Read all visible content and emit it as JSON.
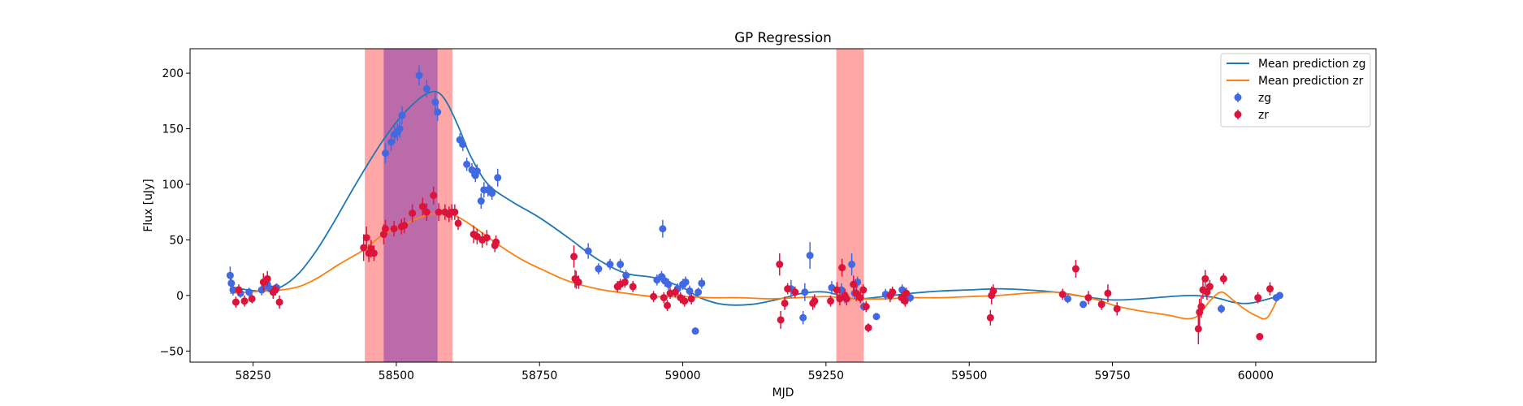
{
  "chart_data": {
    "type": "scatter",
    "title": "GP Regression",
    "xlabel": "MJD",
    "ylabel": "Flux [uJy]",
    "xlim": [
      58140,
      60210
    ],
    "ylim": [
      -60,
      222
    ],
    "xticks": [
      58250,
      58500,
      58750,
      59000,
      59250,
      59500,
      59750,
      60000
    ],
    "yticks": [
      -50,
      0,
      50,
      100,
      150,
      200
    ],
    "grid": false,
    "legend_position": "top-right",
    "legend": [
      "Mean prediction zg",
      "Mean prediction zr",
      "zg",
      "zr"
    ],
    "colors": {
      "zg_line": "#1f77b4",
      "zr_line": "#ff7f0e",
      "zg_points": "#4169e1",
      "zr_points": "#dc143c",
      "band_red": "#ff4d4d",
      "band_purple": "#8e44ad"
    },
    "shaded_regions": [
      {
        "x0": 58445,
        "x1": 58598,
        "color": "red"
      },
      {
        "x0": 58478,
        "x1": 58572,
        "color": "purple"
      },
      {
        "x0": 59268,
        "x1": 59316,
        "color": "red"
      }
    ],
    "series": [
      {
        "name": "Mean prediction zg",
        "kind": "line",
        "x": [
          58210,
          58240,
          58270,
          58300,
          58330,
          58360,
          58390,
          58420,
          58450,
          58480,
          58510,
          58540,
          58560,
          58575,
          58590,
          58610,
          58630,
          58660,
          58700,
          58750,
          58800,
          58850,
          58900,
          58950,
          59000,
          59030,
          59070,
          59120,
          59170,
          59210,
          59250,
          59300,
          59350,
          59400,
          59450,
          59500,
          59550,
          59600,
          59650,
          59700,
          59750,
          59800,
          59850,
          59890,
          59930,
          59960,
          59990,
          60030
        ],
        "y": [
          8,
          5,
          4,
          8,
          20,
          40,
          65,
          92,
          118,
          142,
          162,
          177,
          183,
          182,
          172,
          150,
          125,
          100,
          85,
          70,
          52,
          33,
          20,
          16,
          7,
          -2,
          -8,
          -8,
          -3,
          2,
          3,
          -3,
          -1,
          2,
          4,
          5,
          6,
          5,
          3,
          -1,
          -4,
          -3,
          -1,
          0,
          -2,
          -6,
          -7,
          -2
        ]
      },
      {
        "name": "Mean prediction zr",
        "kind": "line",
        "x": [
          58210,
          58240,
          58270,
          58300,
          58330,
          58360,
          58400,
          58440,
          58460,
          58480,
          58510,
          58540,
          58570,
          58590,
          58610,
          58640,
          58680,
          58720,
          58760,
          58800,
          58850,
          58900,
          58950,
          59000,
          59050,
          59100,
          59150,
          59200,
          59250,
          59300,
          59350,
          59400,
          59450,
          59500,
          59550,
          59600,
          59650,
          59700,
          59730,
          59760,
          59800,
          59850,
          59880,
          59900,
          59920,
          59940,
          59960,
          59980,
          60000,
          60020,
          60040
        ],
        "y": [
          2,
          3,
          4,
          5,
          8,
          15,
          28,
          40,
          48,
          56,
          63,
          70,
          74,
          74,
          70,
          60,
          45,
          32,
          22,
          13,
          6,
          2,
          -1,
          -1,
          -2,
          -2,
          -3,
          -2,
          -1,
          -3,
          -3,
          -2,
          -2,
          -1,
          0,
          2,
          3,
          -1,
          -5,
          -10,
          -14,
          -18,
          -21,
          -18,
          -5,
          3,
          -4,
          -12,
          -18,
          -20,
          -1
        ]
      },
      {
        "name": "zg",
        "kind": "errorbar",
        "x": [
          58210,
          58212,
          58215,
          58228,
          58243,
          58265,
          58270,
          58275,
          58280,
          58291,
          58481,
          58491,
          58497,
          58502,
          58506,
          58510,
          58540,
          58553,
          58568,
          58572,
          58611,
          58616,
          58623,
          58632,
          58638,
          58641,
          58648,
          58653,
          58660,
          58667,
          58677,
          58835,
          58853,
          58873,
          58891,
          58901,
          58955,
          58963,
          58965,
          58969,
          58975,
          58991,
          59000,
          59005,
          59012,
          59022,
          59027,
          59033,
          59189,
          59210,
          59213,
          59222,
          59260,
          59277,
          59283,
          59295,
          59300,
          59305,
          59316,
          59338,
          59354,
          59364,
          59383,
          59397,
          59672,
          59699,
          59940,
          60036,
          60042
        ],
        "y": [
          18,
          11,
          5,
          2,
          3,
          5,
          8,
          10,
          6,
          7,
          128,
          138,
          145,
          147,
          150,
          162,
          198,
          186,
          174,
          165,
          140,
          136,
          118,
          113,
          108,
          112,
          85,
          95,
          95,
          92,
          106,
          40,
          24,
          28,
          28,
          18,
          14,
          17,
          60,
          13,
          10,
          6,
          10,
          12,
          4,
          -32,
          3,
          11,
          6,
          -20,
          3,
          36,
          7,
          5,
          -2,
          28,
          2,
          12,
          -10,
          -19,
          1,
          1,
          5,
          -2,
          -3,
          -8,
          -12,
          -2,
          0
        ],
        "err": [
          8,
          7,
          5,
          4,
          4,
          5,
          5,
          5,
          4,
          4,
          9,
          8,
          8,
          8,
          8,
          8,
          9,
          8,
          8,
          8,
          6,
          6,
          6,
          6,
          6,
          6,
          7,
          7,
          6,
          6,
          8,
          7,
          5,
          5,
          5,
          5,
          5,
          5,
          8,
          5,
          5,
          5,
          5,
          5,
          5,
          3,
          4,
          5,
          8,
          6,
          8,
          12,
          6,
          6,
          5,
          10,
          5,
          5,
          4,
          3,
          5,
          5,
          5,
          4,
          4,
          3,
          4,
          3,
          3
        ]
      },
      {
        "name": "zr",
        "kind": "errorbar",
        "x": [
          58220,
          58225,
          58235,
          58248,
          58268,
          58275,
          58285,
          58289,
          58296,
          58443,
          58448,
          58452,
          58456,
          58461,
          58478,
          58481,
          58496,
          58509,
          58514,
          58528,
          58546,
          58553,
          58565,
          58574,
          58585,
          58592,
          58597,
          58602,
          58608,
          58635,
          58641,
          58650,
          58658,
          58672,
          58674,
          58810,
          58812,
          58814,
          58818,
          58886,
          58891,
          58899,
          58913,
          58949,
          58967,
          58973,
          58978,
          58987,
          58996,
          59003,
          59015,
          59169,
          59171,
          59178,
          59183,
          59196,
          59227,
          59230,
          59258,
          59269,
          59274,
          59278,
          59283,
          59286,
          59298,
          59303,
          59310,
          59315,
          59320,
          59324,
          59362,
          59366,
          59382,
          59388,
          59390,
          59537,
          59539,
          59542,
          59663,
          59686,
          59708,
          59731,
          59742,
          59758,
          59900,
          59902,
          59905,
          59908,
          59912,
          59915,
          59920,
          59944,
          60004,
          60007,
          60025
        ],
        "y": [
          -6,
          5,
          -5,
          -3,
          12,
          15,
          3,
          5,
          -6,
          43,
          52,
          38,
          42,
          38,
          55,
          60,
          60,
          62,
          63,
          74,
          80,
          75,
          90,
          75,
          75,
          73,
          75,
          75,
          65,
          55,
          53,
          50,
          52,
          45,
          48,
          35,
          15,
          14,
          12,
          8,
          10,
          12,
          8,
          -1,
          -2,
          -9,
          2,
          3,
          -2,
          -5,
          -3,
          28,
          -22,
          -7,
          6,
          3,
          -7,
          -5,
          -5,
          5,
          -3,
          25,
          0,
          -3,
          10,
          2,
          -2,
          5,
          -10,
          -29,
          0,
          3,
          -2,
          -5,
          2,
          -20,
          0,
          4,
          1,
          24,
          -2,
          -8,
          2,
          -12,
          -30,
          -15,
          -10,
          5,
          15,
          3,
          8,
          15,
          -2,
          -37,
          6
        ],
        "err": [
          5,
          5,
          5,
          4,
          8,
          7,
          6,
          5,
          6,
          12,
          10,
          8,
          8,
          7,
          9,
          8,
          7,
          7,
          7,
          8,
          8,
          8,
          8,
          8,
          7,
          7,
          7,
          7,
          6,
          8,
          7,
          7,
          7,
          6,
          6,
          10,
          8,
          8,
          6,
          5,
          5,
          5,
          5,
          5,
          5,
          5,
          5,
          5,
          5,
          5,
          5,
          10,
          8,
          6,
          5,
          5,
          6,
          6,
          5,
          7,
          6,
          8,
          6,
          6,
          8,
          7,
          5,
          5,
          5,
          4,
          6,
          5,
          5,
          5,
          5,
          7,
          8,
          6,
          5,
          8,
          6,
          5,
          8,
          6,
          14,
          12,
          10,
          8,
          8,
          7,
          6,
          5,
          5,
          3,
          6
        ]
      }
    ]
  }
}
